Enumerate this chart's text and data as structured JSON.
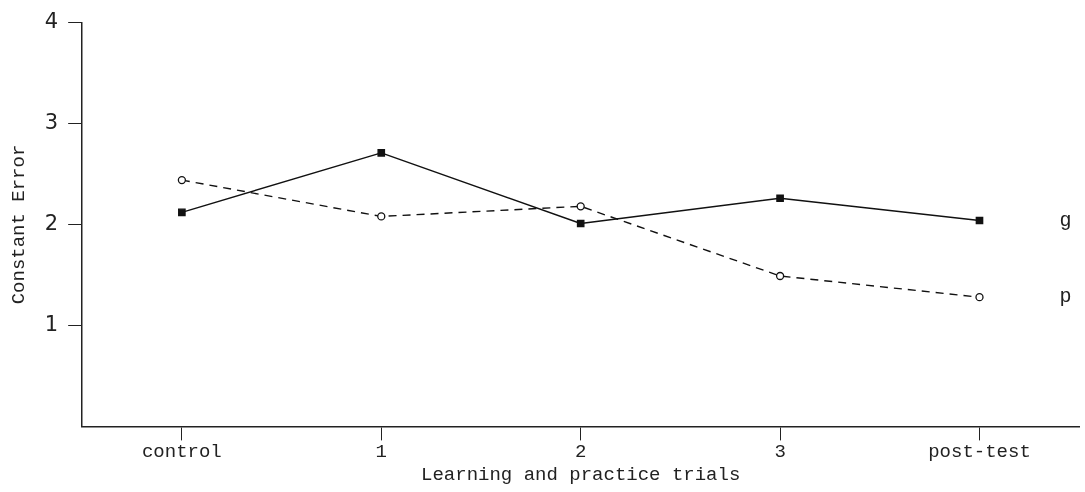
{
  "chart_data": {
    "type": "line",
    "xlabel": "Learning and practice trials",
    "ylabel": "Constant Error",
    "categories": [
      "control",
      "1",
      "2",
      "3",
      "post-test"
    ],
    "series": [
      {
        "name": "g",
        "color": "#111111",
        "marker": "square",
        "line_style": "solid",
        "values": [
          2.12,
          2.71,
          2.01,
          2.26,
          2.04
        ]
      },
      {
        "name": "p",
        "color": "#111111",
        "marker": "circle",
        "line_style": "dashed",
        "values": [
          2.44,
          2.08,
          2.18,
          1.49,
          1.28
        ]
      }
    ],
    "ylim": [
      0,
      4
    ],
    "yticks": [
      1,
      2,
      3,
      4
    ],
    "grid": false,
    "legend": false
  }
}
